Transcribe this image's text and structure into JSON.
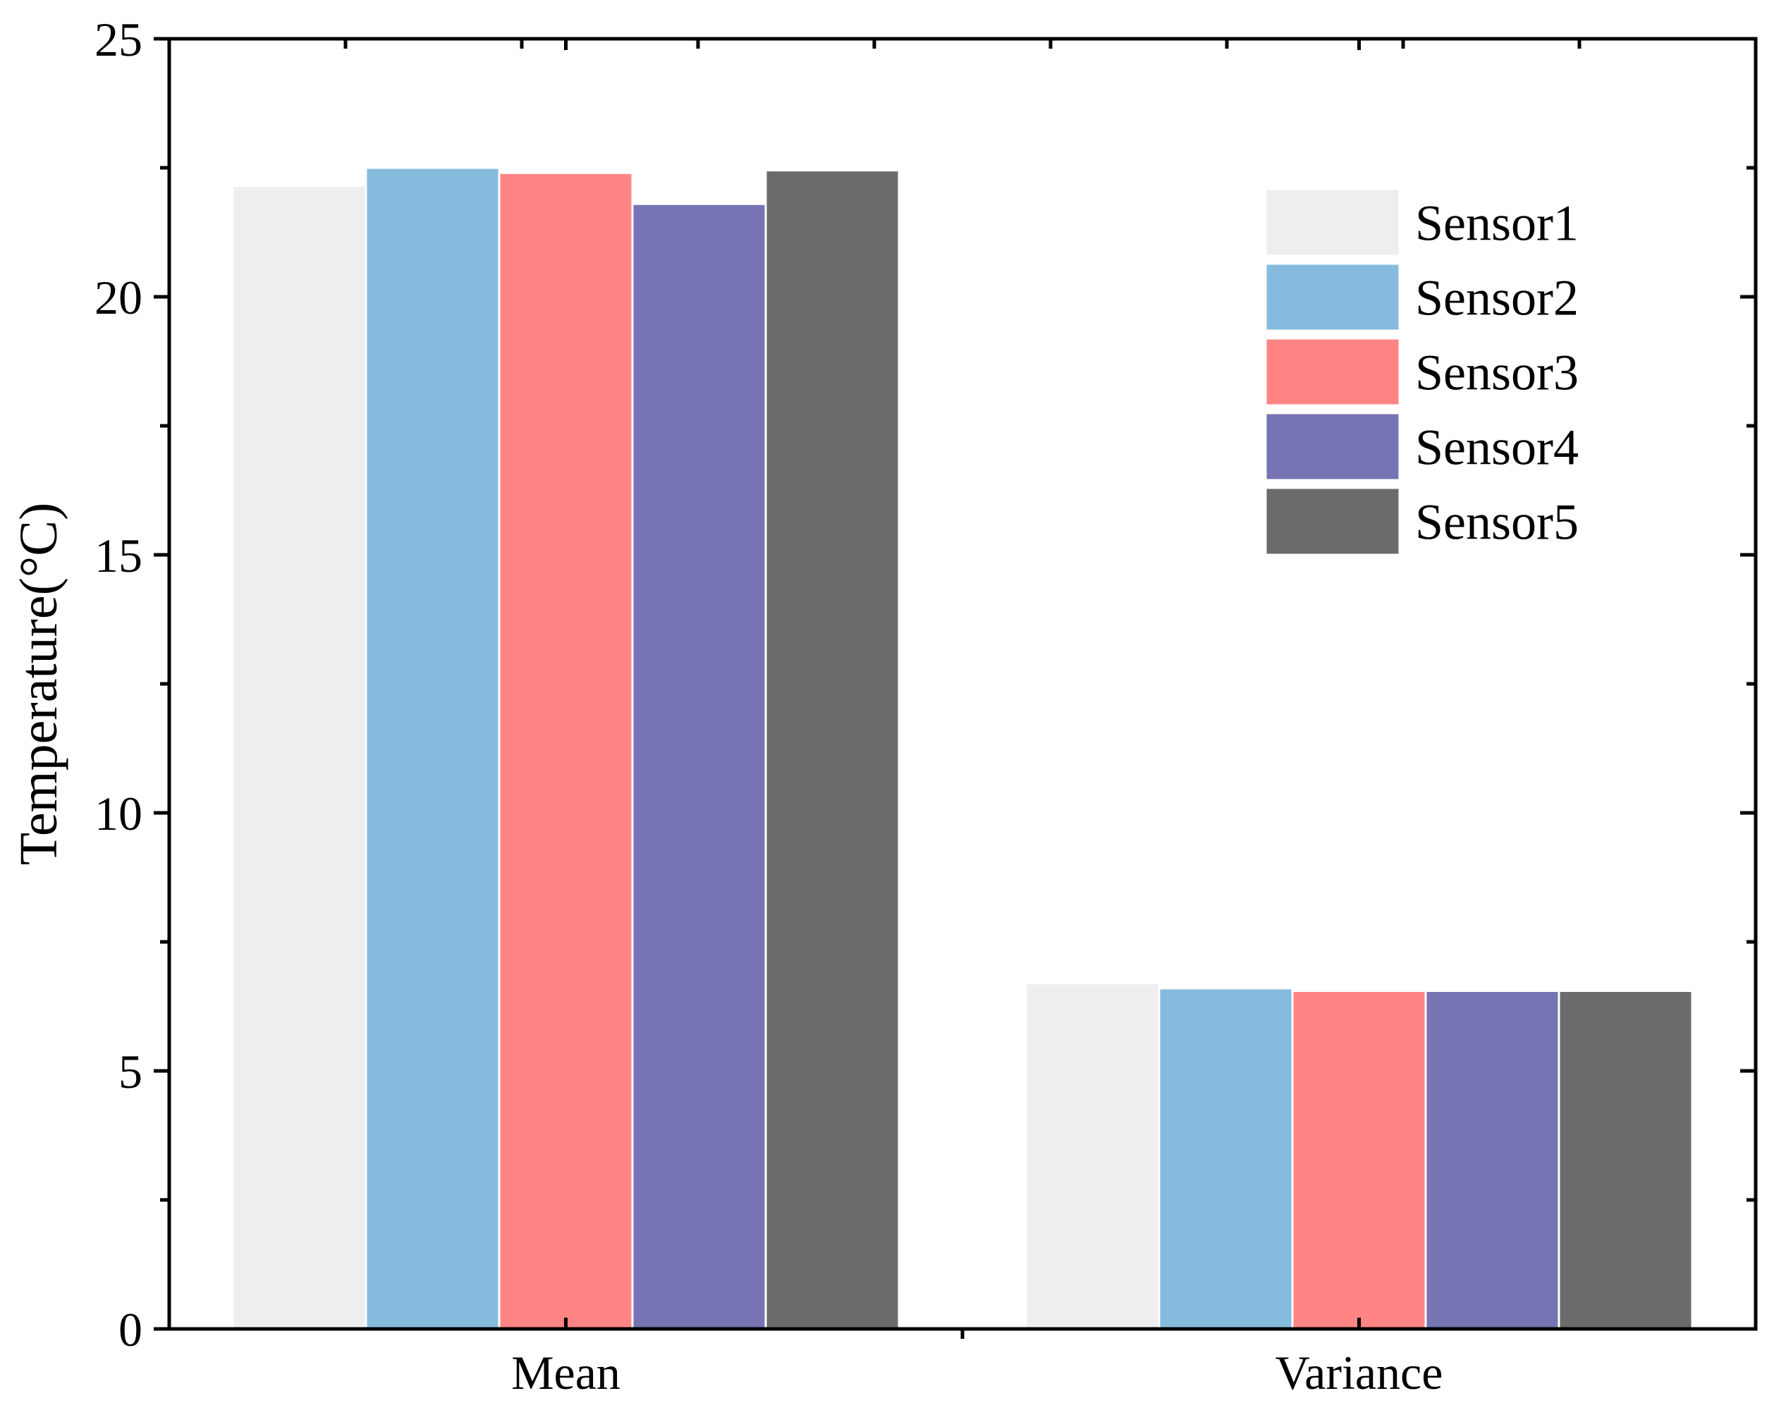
{
  "chart_data": {
    "type": "bar",
    "title": "",
    "xlabel": "",
    "ylabel": "Temperature(°C)",
    "ylim": [
      0,
      25
    ],
    "yticks": [
      0,
      5,
      10,
      15,
      20,
      25
    ],
    "grid": false,
    "legend_position": "top-right",
    "categories": [
      "Mean",
      "Variance"
    ],
    "series": [
      {
        "name": "Sensor1",
        "color": "#eeeeee",
        "values": [
          22.15,
          6.7
        ]
      },
      {
        "name": "Sensor2",
        "color": "#87bbde",
        "values": [
          22.5,
          6.6
        ]
      },
      {
        "name": "Sensor3",
        "color": "#ff8585",
        "values": [
          22.4,
          6.55
        ]
      },
      {
        "name": "Sensor4",
        "color": "#7674b3",
        "values": [
          21.8,
          6.55
        ]
      },
      {
        "name": "Sensor5",
        "color": "#6b6b6b",
        "values": [
          22.45,
          6.55
        ]
      }
    ]
  }
}
